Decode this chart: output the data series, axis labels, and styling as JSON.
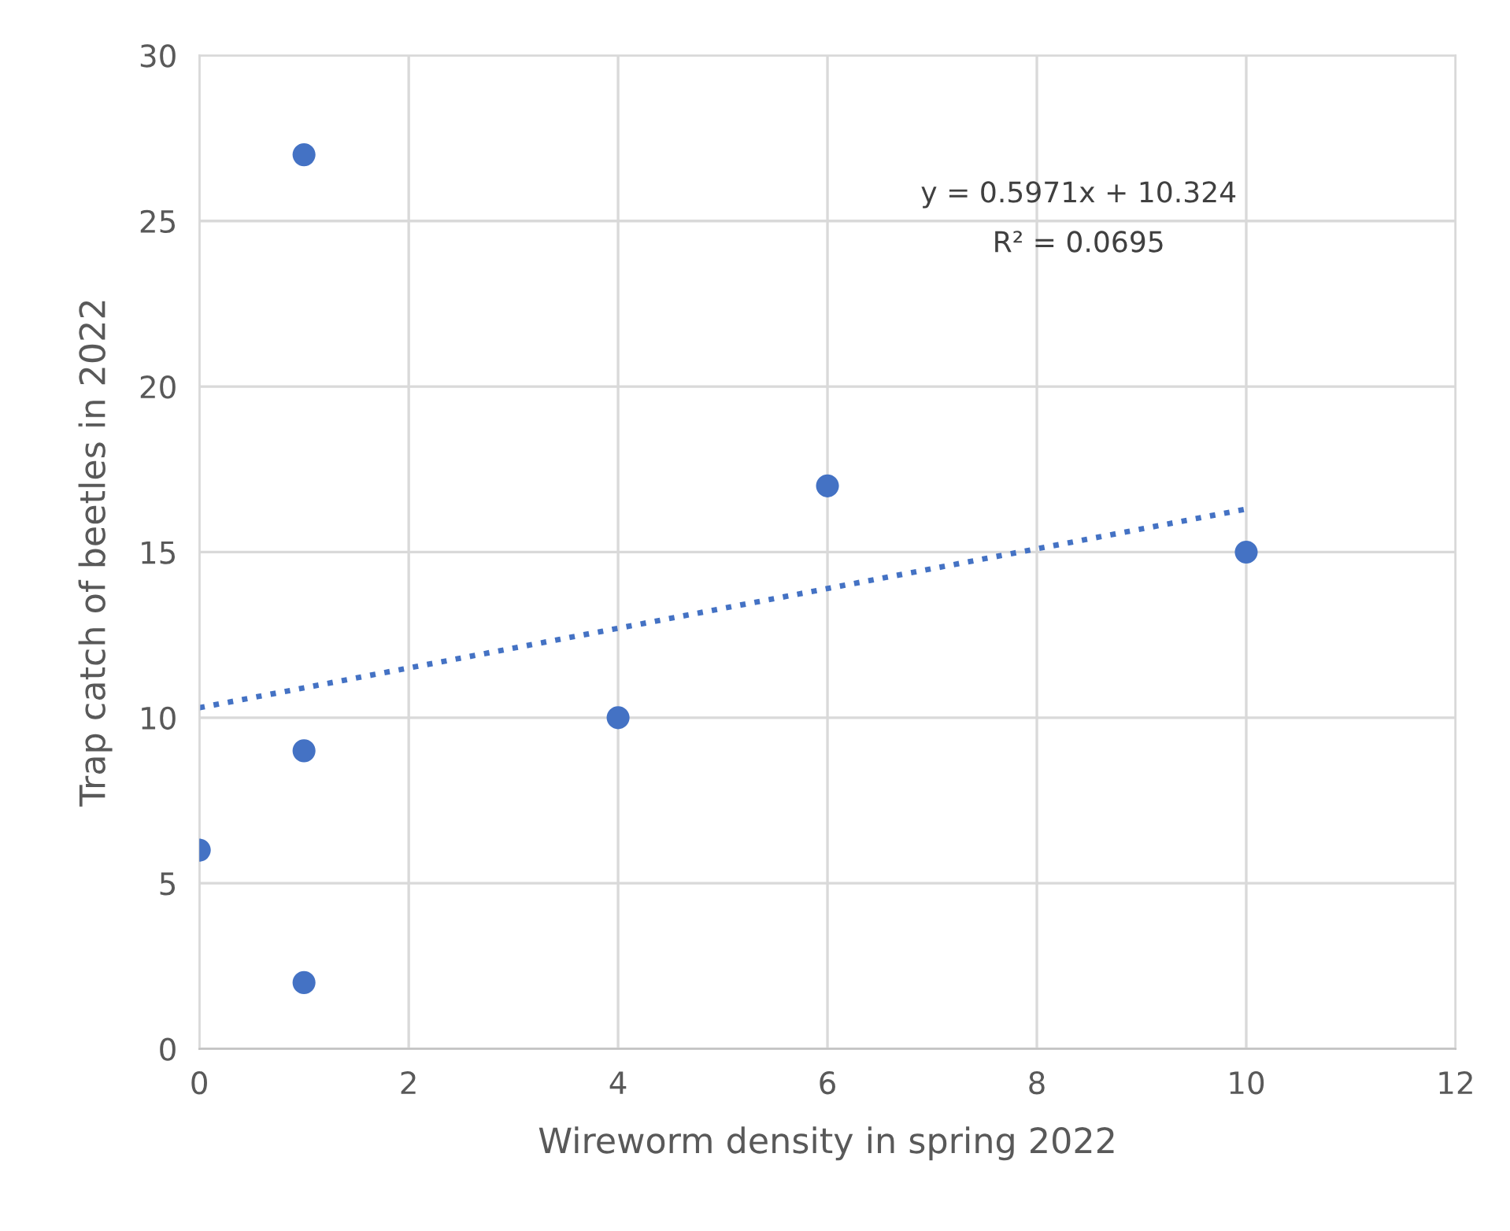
{
  "chart_data": {
    "type": "scatter",
    "xlabel": "Wireworm density in spring 2022",
    "ylabel": "Trap catch of beetles in 2022",
    "series": [
      {
        "type": "scatter",
        "color": "#4472c4",
        "x": [
          0,
          1,
          1,
          1,
          4,
          6,
          10
        ],
        "values": [
          6,
          27,
          9,
          2,
          10,
          17,
          15
        ],
        "marker": "circle"
      },
      {
        "type": "line",
        "color": "#4472c4",
        "x": [
          0,
          10
        ],
        "values": [
          10.3,
          16.3
        ],
        "line_style": "dotted"
      }
    ],
    "annotations": [
      "y = 0.5971x + 10.324",
      "R² = 0.0695"
    ],
    "xlim": [
      0,
      12
    ],
    "xticks": [
      0,
      2,
      4,
      6,
      8,
      10,
      12
    ],
    "ylim": [
      0,
      30
    ],
    "yticks": [
      0,
      5,
      10,
      15,
      20,
      25,
      30
    ],
    "grid": true,
    "legend": false
  }
}
